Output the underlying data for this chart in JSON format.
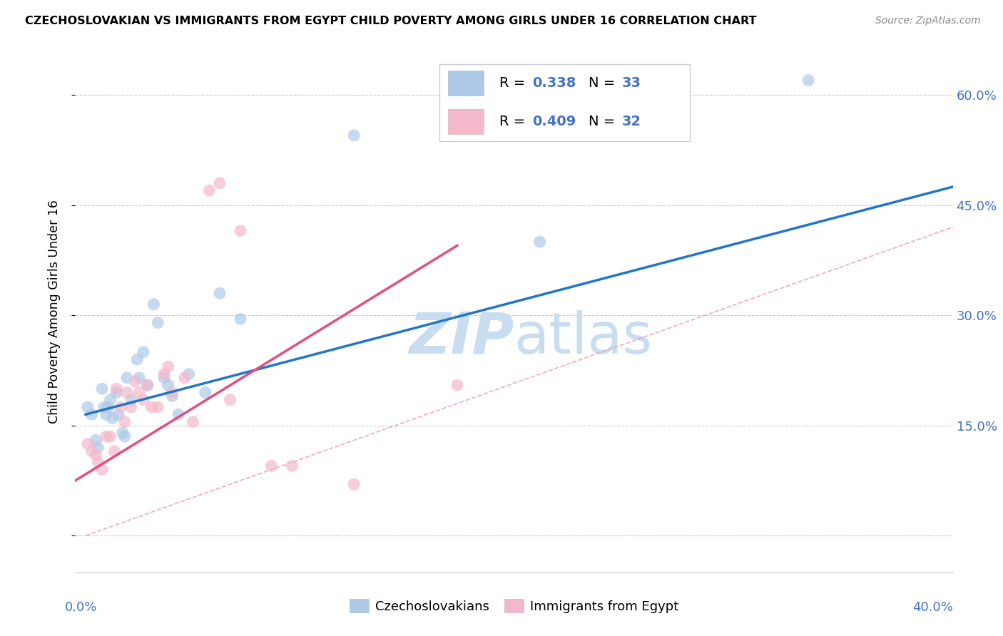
{
  "title": "CZECHOSLOVAKIAN VS IMMIGRANTS FROM EGYPT CHILD POVERTY AMONG GIRLS UNDER 16 CORRELATION CHART",
  "source": "Source: ZipAtlas.com",
  "ylabel": "Child Poverty Among Girls Under 16",
  "xlim": [
    -0.005,
    0.42
  ],
  "ylim": [
    -0.05,
    0.66
  ],
  "yticks": [
    0.0,
    0.15,
    0.3,
    0.45,
    0.6
  ],
  "ytick_labels": [
    "",
    "15.0%",
    "30.0%",
    "45.0%",
    "60.0%"
  ],
  "xticks": [
    0.0,
    0.1,
    0.2,
    0.3,
    0.4
  ],
  "blue_color": "#aec9e8",
  "pink_color": "#f4b8cb",
  "blue_line_color": "#2176c7",
  "pink_line_color": "#e05080",
  "diag_color": "#f0a0b0",
  "grid_color": "#cccccc",
  "label_color": "#4472c4",
  "blue_scatter_x": [
    0.001,
    0.003,
    0.005,
    0.006,
    0.008,
    0.009,
    0.01,
    0.011,
    0.012,
    0.013,
    0.015,
    0.016,
    0.018,
    0.019,
    0.02,
    0.022,
    0.025,
    0.026,
    0.028,
    0.03,
    0.033,
    0.035,
    0.038,
    0.04,
    0.042,
    0.045,
    0.05,
    0.058,
    0.065,
    0.075,
    0.13,
    0.22,
    0.35
  ],
  "blue_scatter_y": [
    0.175,
    0.165,
    0.13,
    0.12,
    0.2,
    0.175,
    0.165,
    0.175,
    0.185,
    0.16,
    0.195,
    0.165,
    0.14,
    0.135,
    0.215,
    0.185,
    0.24,
    0.215,
    0.25,
    0.205,
    0.315,
    0.29,
    0.215,
    0.205,
    0.19,
    0.165,
    0.22,
    0.195,
    0.33,
    0.295,
    0.545,
    0.4,
    0.62
  ],
  "pink_scatter_x": [
    0.001,
    0.003,
    0.005,
    0.006,
    0.008,
    0.01,
    0.012,
    0.014,
    0.015,
    0.017,
    0.019,
    0.02,
    0.022,
    0.024,
    0.026,
    0.028,
    0.03,
    0.032,
    0.035,
    0.038,
    0.04,
    0.042,
    0.048,
    0.052,
    0.06,
    0.065,
    0.07,
    0.075,
    0.09,
    0.1,
    0.13,
    0.18
  ],
  "pink_scatter_y": [
    0.125,
    0.115,
    0.11,
    0.1,
    0.09,
    0.135,
    0.135,
    0.115,
    0.2,
    0.175,
    0.155,
    0.195,
    0.175,
    0.21,
    0.195,
    0.185,
    0.205,
    0.175,
    0.175,
    0.22,
    0.23,
    0.195,
    0.215,
    0.155,
    0.47,
    0.48,
    0.185,
    0.415,
    0.095,
    0.095,
    0.07,
    0.205
  ],
  "blue_line_x": [
    0.0,
    0.42
  ],
  "blue_line_y": [
    0.165,
    0.475
  ],
  "pink_line_x": [
    -0.005,
    0.18
  ],
  "pink_line_y": [
    0.075,
    0.395
  ],
  "legend1_R": "0.338",
  "legend1_N": "33",
  "legend2_R": "0.409",
  "legend2_N": "32"
}
